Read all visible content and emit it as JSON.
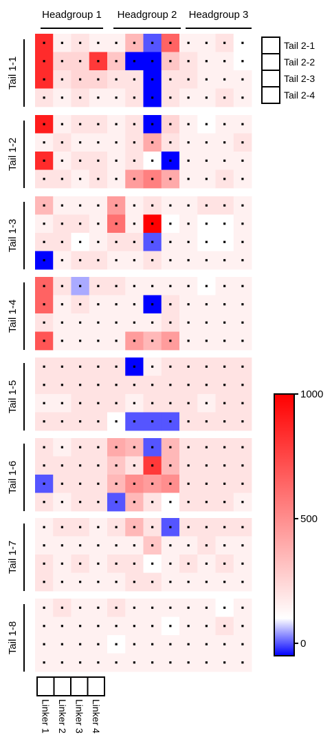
{
  "chart_data": {
    "type": "heatmap",
    "headgroups": [
      "Headgroup 1",
      "Headgroup 2",
      "Headgroup 3"
    ],
    "tails1": [
      "Tail 1-1",
      "Tail 1-2",
      "Tail 1-3",
      "Tail 1-4",
      "Tail 1-5",
      "Tail 1-6",
      "Tail 1-7",
      "Tail 1-8"
    ],
    "tails2": [
      "Tail 2-1",
      "Tail 2-2",
      "Tail 2-3",
      "Tail 2-4"
    ],
    "linkers": [
      "Linker 1",
      "Linker 2",
      "Linker 3",
      "Linker 4"
    ],
    "colorbar": {
      "min": -50,
      "max": 1000,
      "ticks": [
        0,
        500,
        1000
      ]
    },
    "colors": {
      "low": "#0000ff",
      "mid": "#ffffff",
      "high": "#ff0000"
    },
    "blocks": [
      [
        [
          850,
          150,
          200,
          150,
          150,
          350,
          0,
          650,
          150,
          150,
          200,
          100
        ],
        [
          850,
          250,
          250,
          800,
          300,
          -50,
          -50,
          300,
          200,
          150,
          150,
          100
        ],
        [
          850,
          200,
          250,
          250,
          200,
          200,
          -50,
          200,
          200,
          150,
          150,
          150
        ],
        [
          200,
          150,
          200,
          150,
          150,
          200,
          -50,
          200,
          150,
          150,
          200,
          150
        ]
      ],
      [
        [
          900,
          150,
          200,
          200,
          150,
          200,
          -50,
          250,
          150,
          100,
          150,
          150
        ],
        [
          150,
          200,
          150,
          150,
          150,
          200,
          400,
          200,
          150,
          150,
          150,
          200
        ],
        [
          850,
          150,
          200,
          200,
          150,
          200,
          100,
          -50,
          150,
          150,
          150,
          150
        ],
        [
          200,
          200,
          150,
          200,
          150,
          450,
          550,
          400,
          150,
          150,
          200,
          150
        ]
      ],
      [
        [
          350,
          150,
          150,
          150,
          450,
          150,
          200,
          150,
          150,
          200,
          200,
          150
        ],
        [
          150,
          200,
          200,
          150,
          600,
          150,
          1000,
          100,
          150,
          100,
          100,
          150
        ],
        [
          200,
          200,
          100,
          150,
          200,
          200,
          0,
          150,
          150,
          100,
          100,
          150
        ],
        [
          -50,
          150,
          200,
          200,
          150,
          150,
          200,
          150,
          150,
          150,
          150,
          150
        ]
      ],
      [
        [
          650,
          200,
          50,
          200,
          200,
          150,
          150,
          150,
          150,
          100,
          150,
          150
        ],
        [
          650,
          150,
          200,
          150,
          150,
          150,
          -50,
          200,
          150,
          150,
          150,
          150
        ],
        [
          200,
          150,
          150,
          150,
          150,
          150,
          150,
          200,
          150,
          150,
          150,
          150
        ],
        [
          700,
          150,
          150,
          150,
          150,
          450,
          350,
          450,
          150,
          150,
          150,
          150
        ]
      ],
      [
        [
          200,
          200,
          200,
          200,
          200,
          -50,
          150,
          200,
          200,
          200,
          200,
          200
        ],
        [
          200,
          200,
          200,
          200,
          200,
          200,
          200,
          200,
          200,
          200,
          200,
          200
        ],
        [
          150,
          150,
          200,
          200,
          200,
          150,
          200,
          200,
          200,
          150,
          200,
          200
        ],
        [
          200,
          200,
          200,
          200,
          100,
          0,
          0,
          0,
          200,
          200,
          200,
          200
        ]
      ],
      [
        [
          200,
          150,
          200,
          200,
          400,
          350,
          0,
          350,
          200,
          200,
          200,
          200
        ],
        [
          200,
          200,
          200,
          200,
          300,
          200,
          800,
          350,
          200,
          200,
          200,
          200
        ],
        [
          0,
          200,
          200,
          200,
          350,
          500,
          450,
          500,
          200,
          200,
          200,
          200
        ],
        [
          200,
          150,
          200,
          200,
          0,
          350,
          200,
          100,
          200,
          200,
          200,
          150
        ]
      ],
      [
        [
          150,
          200,
          200,
          150,
          200,
          350,
          200,
          0,
          200,
          200,
          200,
          200
        ],
        [
          150,
          150,
          150,
          150,
          150,
          150,
          300,
          150,
          150,
          200,
          150,
          150
        ],
        [
          200,
          150,
          200,
          150,
          200,
          200,
          100,
          150,
          200,
          150,
          200,
          150
        ],
        [
          200,
          150,
          150,
          150,
          150,
          200,
          200,
          150,
          150,
          150,
          150,
          150
        ]
      ],
      [
        [
          150,
          200,
          150,
          150,
          200,
          150,
          150,
          150,
          150,
          150,
          100,
          150
        ],
        [
          150,
          150,
          150,
          150,
          150,
          150,
          150,
          100,
          150,
          150,
          200,
          150
        ],
        [
          150,
          150,
          150,
          150,
          100,
          150,
          150,
          150,
          150,
          150,
          150,
          150
        ],
        [
          150,
          150,
          150,
          150,
          150,
          150,
          150,
          150,
          150,
          150,
          150,
          150
        ]
      ]
    ],
    "cell_marker": "dot",
    "legend_placement": "right"
  }
}
